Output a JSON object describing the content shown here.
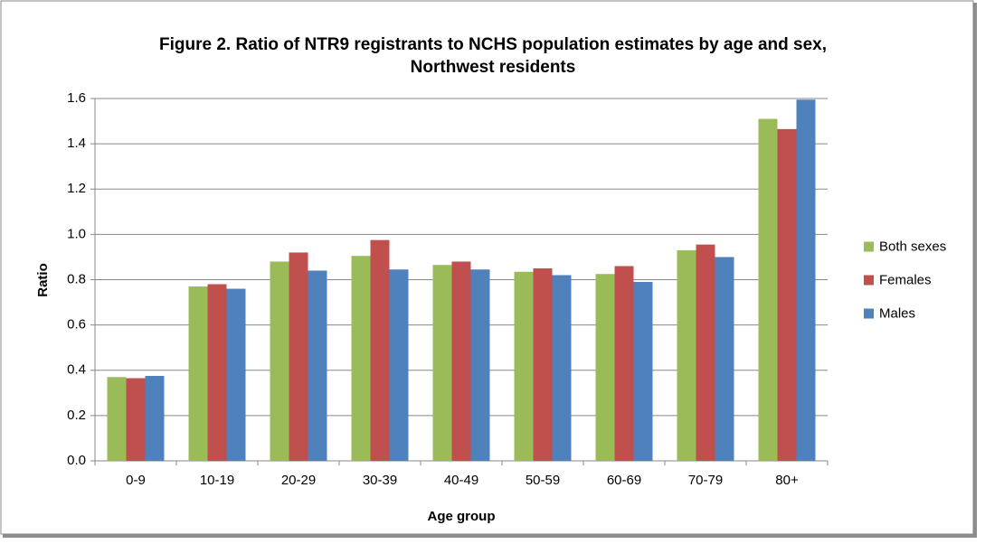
{
  "chart_data": {
    "type": "bar",
    "title": [
      "Figure 2. Ratio of NTR9 registrants to NCHS population estimates by age and sex,",
      "Northwest residents"
    ],
    "x_label": "Age group",
    "y_label": "Ratio",
    "categories": [
      "0-9",
      "10-19",
      "20-29",
      "30-39",
      "40-49",
      "50-59",
      "60-69",
      "70-79",
      "80+"
    ],
    "series": [
      {
        "name": "Both sexes",
        "color": "#9bbb59",
        "values": [
          0.37,
          0.77,
          0.88,
          0.905,
          0.865,
          0.835,
          0.825,
          0.93,
          1.51
        ]
      },
      {
        "name": "Females",
        "color": "#c0504d",
        "values": [
          0.365,
          0.78,
          0.92,
          0.975,
          0.88,
          0.85,
          0.86,
          0.955,
          1.465
        ]
      },
      {
        "name": "Males",
        "color": "#4f81bd",
        "values": [
          0.375,
          0.76,
          0.84,
          0.845,
          0.845,
          0.82,
          0.79,
          0.9,
          1.595
        ]
      }
    ],
    "ylim": [
      0,
      1.6
    ],
    "yticks": [
      {
        "value": 0,
        "label": "0.0"
      },
      0.2,
      0.4,
      0.6,
      0.8,
      {
        "value": 1,
        "label": "1.0"
      },
      1.2,
      1.4,
      1.6
    ],
    "grid": true,
    "legend": "right"
  }
}
